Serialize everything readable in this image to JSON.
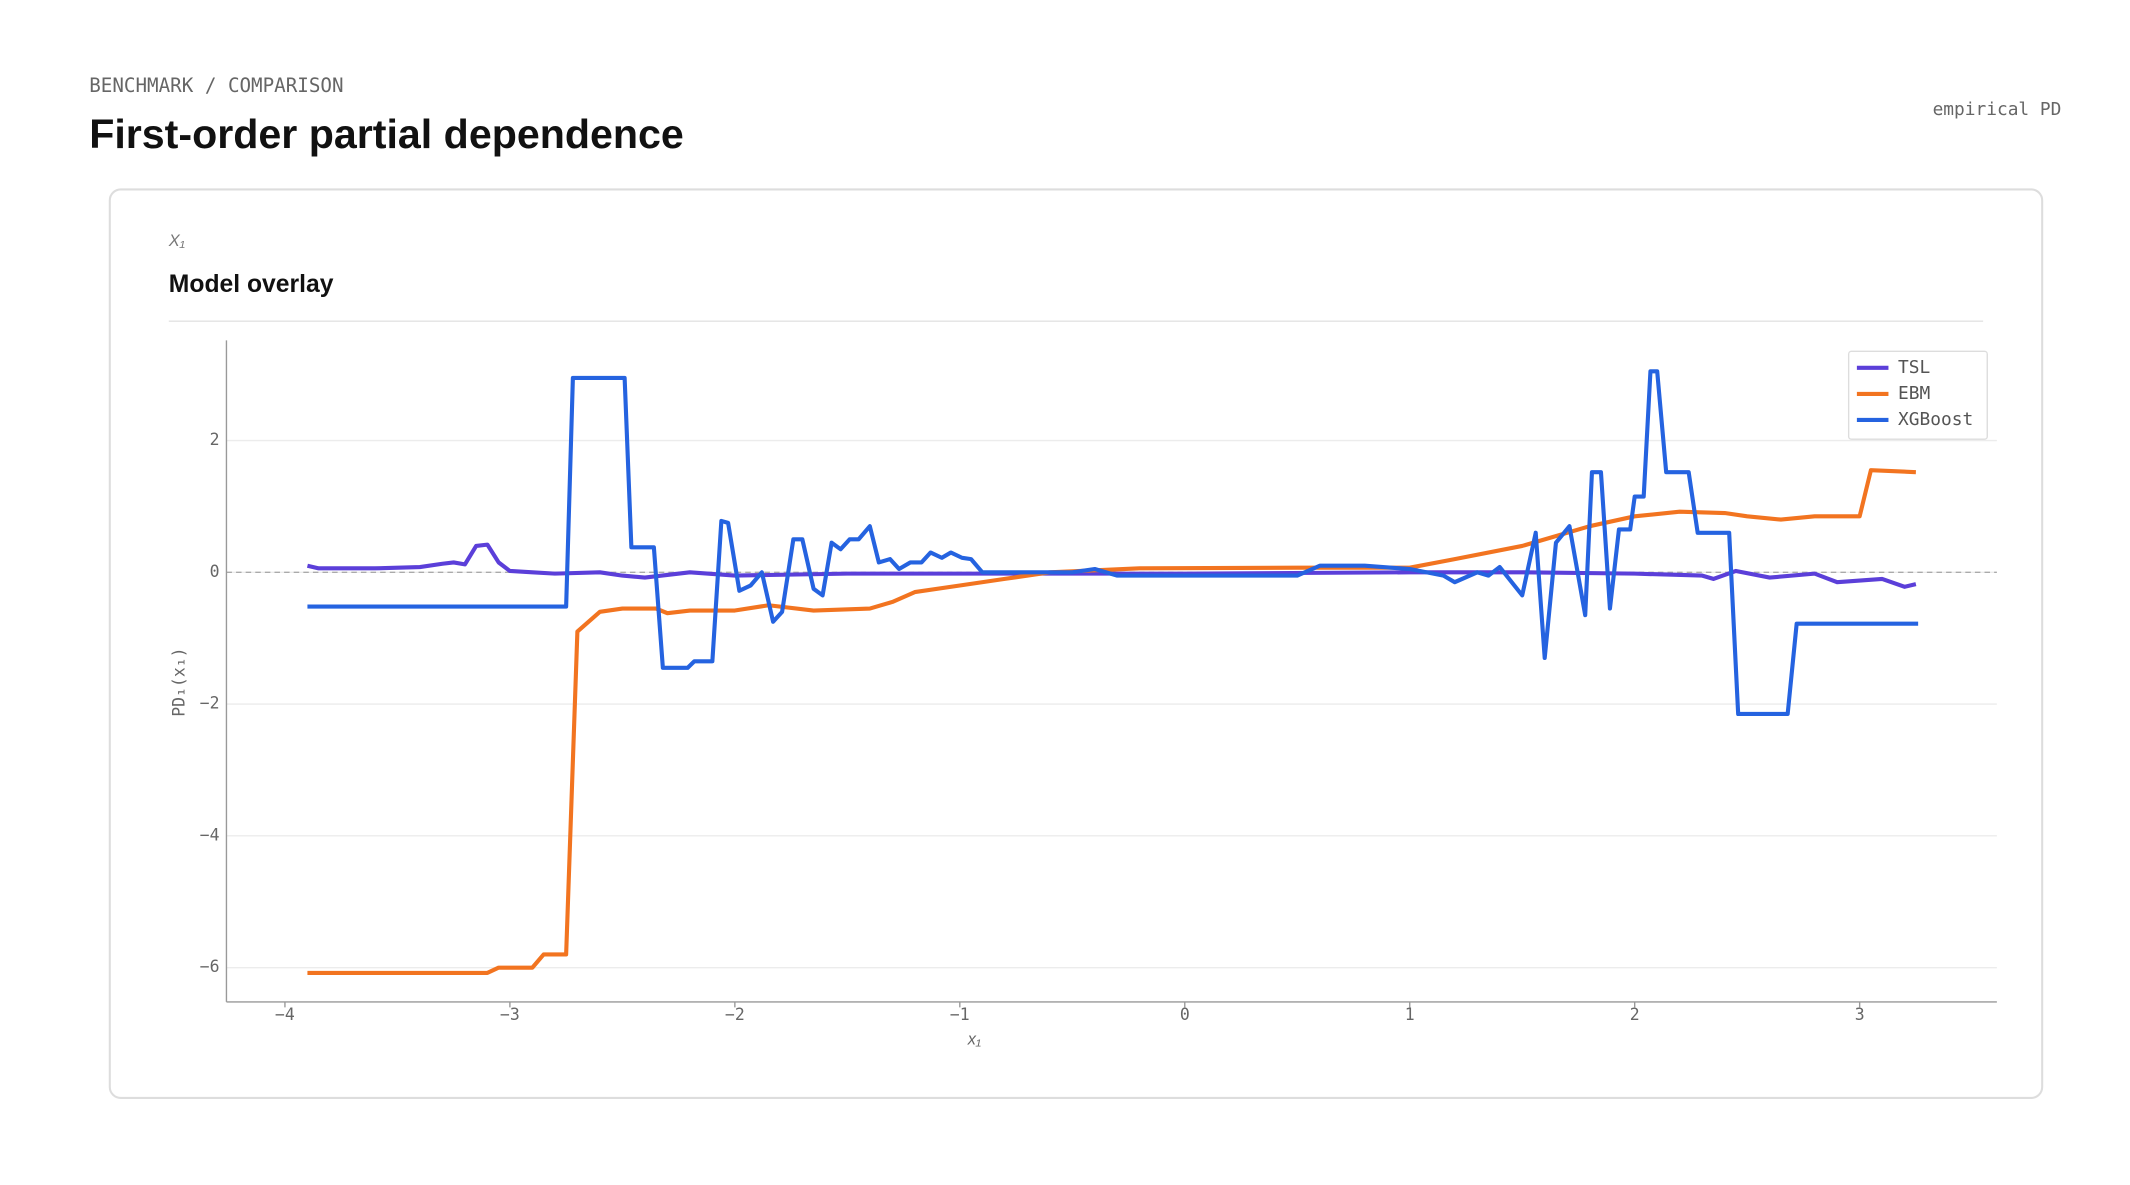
{
  "eyebrow": "BENCHMARK / COMPARISON",
  "title": "First-order partial dependence",
  "badge": "empirical PD",
  "chart_data": {
    "type": "line",
    "feature": "X₁",
    "title": "Model overlay",
    "xlabel": "x₁",
    "ylabel": "PD₁(x₁)",
    "xlim": [
      -4.26,
      3.61
    ],
    "ylim": [
      -6.52,
      3.52
    ],
    "xticks": [
      {
        "value": -4,
        "label": "−4"
      },
      {
        "value": -3,
        "label": "−3"
      },
      {
        "value": -2,
        "label": "−2"
      },
      {
        "value": -1,
        "label": "−1"
      },
      0,
      1,
      2,
      3
    ],
    "yticks": [
      {
        "value": -6,
        "label": "−6"
      },
      {
        "value": -4,
        "label": "−4"
      },
      {
        "value": -2,
        "label": "−2"
      },
      0,
      2
    ],
    "grid": true,
    "zero_line": true,
    "legend": "upper right",
    "series": [
      {
        "name": "TSL",
        "color": "#5b3fd9",
        "x": [
          -3.9,
          -3.85,
          -3.6,
          -3.4,
          -3.3,
          -3.25,
          -3.2,
          -3.15,
          -3.1,
          -3.05,
          -3.0,
          -2.9,
          -2.8,
          -2.6,
          -2.5,
          -2.4,
          -2.2,
          -2.0,
          -1.5,
          -1.0,
          0,
          1,
          1.5,
          2.0,
          2.3,
          2.35,
          2.45,
          2.6,
          2.8,
          2.9,
          3.1,
          3.2,
          3.25
        ],
        "values": [
          0.1,
          0.06,
          0.06,
          0.08,
          0.13,
          0.15,
          0.12,
          0.4,
          0.42,
          0.15,
          0.02,
          0.0,
          -0.02,
          0.0,
          -0.05,
          -0.08,
          0.0,
          -0.05,
          -0.02,
          -0.02,
          -0.02,
          0.0,
          0.0,
          -0.02,
          -0.05,
          -0.1,
          0.02,
          -0.08,
          -0.02,
          -0.15,
          -0.1,
          -0.22,
          -0.18
        ]
      },
      {
        "name": "EBM",
        "color": "#f27420",
        "x": [
          -3.9,
          -3.1,
          -3.05,
          -2.9,
          -2.85,
          -2.75,
          -2.7,
          -2.65,
          -2.6,
          -2.5,
          -2.35,
          -2.3,
          -2.2,
          -2.0,
          -1.85,
          -1.65,
          -1.4,
          -1.3,
          -1.2,
          -1.0,
          -0.8,
          -0.6,
          -0.2,
          0.5,
          1.0,
          1.2,
          1.5,
          1.8,
          2.0,
          2.2,
          2.4,
          2.5,
          2.65,
          2.8,
          3.0,
          3.05,
          3.25
        ],
        "values": [
          -6.08,
          -6.08,
          -6.0,
          -6.0,
          -5.8,
          -5.8,
          -0.9,
          -0.75,
          -0.6,
          -0.55,
          -0.55,
          -0.62,
          -0.58,
          -0.58,
          -0.5,
          -0.58,
          -0.55,
          -0.45,
          -0.3,
          -0.2,
          -0.1,
          0.0,
          0.06,
          0.07,
          0.07,
          0.2,
          0.4,
          0.7,
          0.85,
          0.92,
          0.9,
          0.85,
          0.8,
          0.85,
          0.85,
          1.55,
          1.52
        ]
      },
      {
        "name": "XGBoost",
        "color": "#2563e0",
        "x": [
          -3.9,
          -2.75,
          -2.72,
          -2.49,
          -2.46,
          -2.36,
          -2.32,
          -2.21,
          -2.18,
          -2.1,
          -2.06,
          -2.03,
          -1.98,
          -1.93,
          -1.88,
          -1.83,
          -1.79,
          -1.74,
          -1.7,
          -1.65,
          -1.61,
          -1.57,
          -1.53,
          -1.49,
          -1.45,
          -1.4,
          -1.36,
          -1.31,
          -1.27,
          -1.22,
          -1.17,
          -1.13,
          -1.08,
          -1.04,
          -0.99,
          -0.95,
          -0.9,
          -0.85,
          -0.8,
          -0.75,
          -0.5,
          -0.4,
          -0.3,
          0.5,
          0.6,
          0.8,
          1.0,
          1.15,
          1.2,
          1.3,
          1.35,
          1.4,
          1.5,
          1.56,
          1.6,
          1.65,
          1.71,
          1.78,
          1.81,
          1.85,
          1.89,
          1.93,
          1.98,
          2.0,
          2.04,
          2.07,
          2.1,
          2.14,
          2.24,
          2.28,
          2.42,
          2.46,
          2.68,
          2.72,
          3.26
        ],
        "values": [
          -0.52,
          -0.52,
          2.95,
          2.95,
          0.38,
          0.38,
          -1.45,
          -1.45,
          -1.35,
          -1.35,
          0.78,
          0.75,
          -0.28,
          -0.2,
          0.0,
          -0.75,
          -0.6,
          0.5,
          0.5,
          -0.25,
          -0.35,
          0.45,
          0.35,
          0.5,
          0.5,
          0.7,
          0.15,
          0.2,
          0.05,
          0.15,
          0.15,
          0.3,
          0.22,
          0.3,
          0.22,
          0.2,
          0.0,
          0.0,
          0.0,
          0.0,
          0.0,
          0.05,
          -0.05,
          -0.05,
          0.1,
          0.1,
          0.05,
          -0.05,
          -0.15,
          0.0,
          -0.05,
          0.08,
          -0.35,
          0.6,
          -1.3,
          0.45,
          0.7,
          -0.65,
          1.52,
          1.52,
          -0.55,
          0.65,
          0.65,
          1.15,
          1.15,
          3.05,
          3.05,
          1.52,
          1.52,
          0.6,
          0.6,
          -2.15,
          -2.15,
          -0.78,
          -0.78
        ]
      }
    ]
  }
}
